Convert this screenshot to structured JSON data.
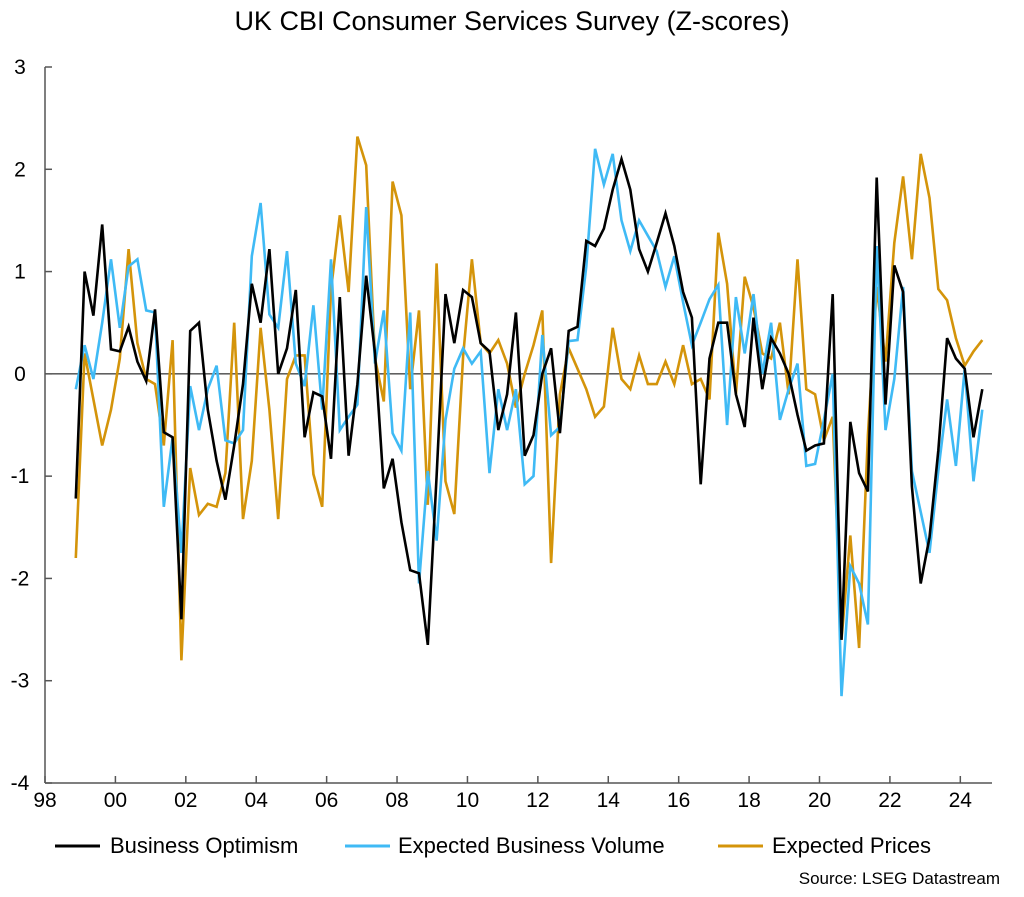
{
  "chart_data": {
    "type": "line",
    "title": "UK CBI Consumer Services Survey (Z-scores)",
    "xlabel": "",
    "ylabel": "",
    "frequency": "quarterly",
    "x": [
      "1998Q4",
      "1999Q1",
      "1999Q2",
      "1999Q3",
      "1999Q4",
      "2000Q1",
      "2000Q2",
      "2000Q3",
      "2000Q4",
      "2001Q1",
      "2001Q2",
      "2001Q3",
      "2001Q4",
      "2002Q1",
      "2002Q2",
      "2002Q3",
      "2002Q4",
      "2003Q1",
      "2003Q2",
      "2003Q3",
      "2003Q4",
      "2004Q1",
      "2004Q2",
      "2004Q3",
      "2004Q4",
      "2005Q1",
      "2005Q2",
      "2005Q3",
      "2005Q4",
      "2006Q1",
      "2006Q2",
      "2006Q3",
      "2006Q4",
      "2007Q1",
      "2007Q2",
      "2007Q3",
      "2007Q4",
      "2008Q1",
      "2008Q2",
      "2008Q3",
      "2008Q4",
      "2009Q1",
      "2009Q2",
      "2009Q3",
      "2009Q4",
      "2010Q1",
      "2010Q2",
      "2010Q3",
      "2010Q4",
      "2011Q1",
      "2011Q2",
      "2011Q3",
      "2011Q4",
      "2012Q1",
      "2012Q2",
      "2012Q3",
      "2012Q4",
      "2013Q1",
      "2013Q2",
      "2013Q3",
      "2013Q4",
      "2014Q1",
      "2014Q2",
      "2014Q3",
      "2014Q4",
      "2015Q1",
      "2015Q2",
      "2015Q3",
      "2015Q4",
      "2016Q1",
      "2016Q2",
      "2016Q3",
      "2016Q4",
      "2017Q1",
      "2017Q2",
      "2017Q3",
      "2017Q4",
      "2018Q1",
      "2018Q2",
      "2018Q3",
      "2018Q4",
      "2019Q1",
      "2019Q2",
      "2019Q3",
      "2019Q4",
      "2020Q1",
      "2020Q2",
      "2020Q3",
      "2020Q4",
      "2021Q1",
      "2021Q2",
      "2021Q3",
      "2021Q4",
      "2022Q1",
      "2022Q2",
      "2022Q3",
      "2022Q4",
      "2023Q1",
      "2023Q2",
      "2023Q3",
      "2023Q4",
      "2024Q1",
      "2024Q2",
      "2024Q3"
    ],
    "xlim": [
      1998,
      2024.9
    ],
    "xticks": [
      "98",
      "00",
      "02",
      "04",
      "06",
      "08",
      "10",
      "12",
      "14",
      "16",
      "18",
      "20",
      "22",
      "24"
    ],
    "ylim": [
      -4,
      3
    ],
    "yticks": [
      "3",
      "2",
      "1",
      "0",
      "-1",
      "-2",
      "-3",
      "-4"
    ],
    "zero_line": true,
    "grid": false,
    "legend_position": "bottom",
    "series": [
      {
        "name": "Business Optimism",
        "color": "#000000",
        "values": [
          -1.22,
          1.0,
          0.57,
          1.46,
          0.24,
          0.22,
          0.46,
          0.12,
          -0.07,
          0.63,
          -0.57,
          -0.62,
          -2.4,
          0.42,
          0.5,
          -0.35,
          -0.85,
          -1.23,
          -0.7,
          -0.1,
          0.88,
          0.5,
          1.22,
          0.0,
          0.25,
          0.82,
          -0.62,
          -0.18,
          -0.22,
          -0.83,
          0.75,
          -0.8,
          -0.1,
          0.96,
          0.2,
          -1.12,
          -0.83,
          -1.45,
          -1.92,
          -1.95,
          -2.65,
          -1.0,
          0.78,
          0.3,
          0.82,
          0.75,
          0.3,
          0.22,
          -0.55,
          -0.2,
          0.6,
          -0.8,
          -0.6,
          0.0,
          0.25,
          -0.58,
          0.42,
          0.46,
          1.3,
          1.25,
          1.42,
          1.8,
          2.1,
          1.8,
          1.22,
          1.0,
          1.28,
          1.57,
          1.25,
          0.8,
          0.55,
          -1.08,
          0.15,
          0.5,
          0.5,
          -0.2,
          -0.52,
          0.55,
          -0.15,
          0.35,
          0.2,
          0.0,
          -0.4,
          -0.75,
          -0.7,
          -0.68,
          0.78,
          -2.6,
          -0.47,
          -0.97,
          -1.15,
          1.92,
          -0.3,
          1.06,
          0.8,
          -1.1,
          -2.05,
          -1.6,
          -0.75,
          0.35,
          0.15,
          0.05,
          -0.62,
          -0.15
        ]
      },
      {
        "name": "Expected Business Volume",
        "color": "#3fbaf5",
        "values": [
          -0.15,
          0.28,
          -0.05,
          0.5,
          1.12,
          0.45,
          1.05,
          1.12,
          0.62,
          0.6,
          -1.3,
          -0.62,
          -1.75,
          -0.12,
          -0.55,
          -0.15,
          0.08,
          -0.65,
          -0.68,
          -0.55,
          1.15,
          1.67,
          0.58,
          0.45,
          1.2,
          0.1,
          -0.12,
          0.67,
          -0.35,
          1.12,
          -0.55,
          -0.42,
          -0.3,
          1.63,
          0.1,
          0.62,
          -0.58,
          -0.75,
          0.6,
          -2.05,
          -0.95,
          -1.63,
          -0.45,
          0.05,
          0.25,
          0.1,
          0.22,
          -0.97,
          -0.15,
          -0.55,
          -0.15,
          -1.08,
          -1.0,
          0.38,
          -0.6,
          -0.52,
          0.32,
          0.33,
          1.05,
          2.2,
          1.85,
          2.15,
          1.5,
          1.2,
          1.5,
          1.35,
          1.2,
          0.85,
          1.15,
          0.7,
          0.28,
          0.5,
          0.73,
          0.87,
          -0.5,
          0.75,
          0.2,
          0.78,
          0.0,
          0.5,
          -0.45,
          -0.15,
          0.1,
          -0.9,
          -0.88,
          -0.45,
          0.0,
          -3.15,
          -1.88,
          -2.05,
          -2.45,
          1.25,
          -0.55,
          -0.05,
          0.85,
          -0.95,
          -1.35,
          -1.75,
          -0.95,
          -0.25,
          -0.9,
          0.05,
          -1.05,
          -0.35
        ]
      },
      {
        "name": "Expected Prices",
        "color": "#d4940a",
        "values": [
          -1.8,
          0.2,
          -0.25,
          -0.7,
          -0.35,
          0.15,
          1.22,
          0.3,
          -0.05,
          -0.1,
          -0.7,
          0.33,
          -2.8,
          -0.92,
          -1.38,
          -1.27,
          -1.3,
          -0.97,
          0.5,
          -1.42,
          -0.85,
          0.45,
          -0.35,
          -1.42,
          -0.05,
          0.18,
          0.18,
          -0.98,
          -1.3,
          0.82,
          1.55,
          0.8,
          2.32,
          2.04,
          0.15,
          -0.27,
          1.88,
          1.55,
          -0.15,
          0.62,
          -1.28,
          1.08,
          -1.05,
          -1.37,
          0.17,
          1.12,
          0.3,
          0.2,
          0.33,
          0.1,
          -0.33,
          0.0,
          0.28,
          0.62,
          -1.85,
          -0.2,
          0.25,
          0.05,
          -0.15,
          -0.42,
          -0.32,
          0.45,
          -0.05,
          -0.15,
          0.18,
          -0.1,
          -0.1,
          0.12,
          -0.1,
          0.28,
          -0.1,
          -0.05,
          -0.25,
          1.38,
          0.88,
          -0.2,
          0.95,
          0.65,
          0.2,
          0.15,
          0.5,
          -0.2,
          1.12,
          -0.15,
          -0.2,
          -0.65,
          -0.42,
          -2.6,
          -1.58,
          -2.68,
          -0.6,
          0.85,
          0.12,
          1.28,
          1.93,
          1.12,
          2.15,
          1.72,
          0.83,
          0.72,
          0.35,
          0.08,
          0.22,
          0.33
        ]
      }
    ],
    "source": "Source: LSEG Datastream"
  }
}
